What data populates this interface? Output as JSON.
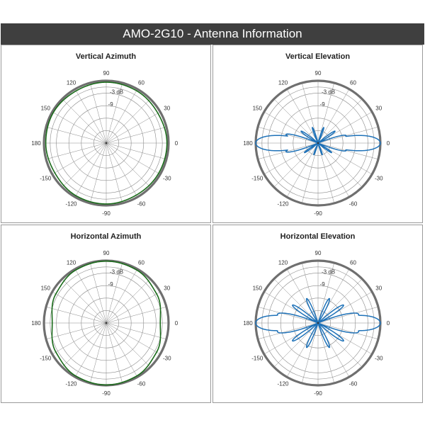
{
  "header": {
    "title": "AMO-2G10 - Antenna Information"
  },
  "colors": {
    "header_bg": "#3f3f3f",
    "azimuth_trace": "#1a6b1a",
    "elevation_trace": "#1f72b8",
    "grid": "#8a8a8a",
    "outer_ring": "#6f6f6f"
  },
  "chart_data": [
    {
      "type": "polar",
      "title": "Vertical Azimuth",
      "angle_labels": [
        "0",
        "30",
        "60",
        "90",
        "120",
        "150",
        "180",
        "-150",
        "-120",
        "-90",
        "-60",
        "-30"
      ],
      "ring_labels": [
        "-3 dB",
        "-9"
      ],
      "series": [
        {
          "color": "#1a6b1a",
          "pattern": "vertical_azimuth",
          "gain_db": [
            -0.8,
            -1.3,
            -0.9,
            -0.7,
            -1.0,
            -0.6,
            -0.9,
            -1.4,
            -0.8,
            -0.7,
            -1.1,
            -0.9,
            -0.8
          ]
        }
      ]
    },
    {
      "type": "polar",
      "title": "Vertical Elevation",
      "angle_labels": [
        "0",
        "30",
        "60",
        "90",
        "120",
        "150",
        "180",
        "-150",
        "-120",
        "-90",
        "-60",
        "-30"
      ],
      "ring_labels": [
        "-3 dB",
        "-9"
      ],
      "series": [
        {
          "color": "#1f72b8",
          "pattern": "vertical_elevation",
          "lobes": [
            {
              "angle": 0,
              "db": 0,
              "width": 7
            },
            {
              "angle": 180,
              "db": 0,
              "width": 7
            },
            {
              "angle": 15,
              "db": -16,
              "width": 4
            },
            {
              "angle": -15,
              "db": -16,
              "width": 4
            },
            {
              "angle": 165,
              "db": -14,
              "width": 4
            },
            {
              "angle": -165,
              "db": -14,
              "width": 4
            },
            {
              "angle": 35,
              "db": -20,
              "width": 4
            },
            {
              "angle": -35,
              "db": -22,
              "width": 4
            },
            {
              "angle": 145,
              "db": -20,
              "width": 4
            },
            {
              "angle": -145,
              "db": -22,
              "width": 4
            },
            {
              "angle": 70,
              "db": -22,
              "width": 4
            },
            {
              "angle": 110,
              "db": -22,
              "width": 4
            },
            {
              "angle": -70,
              "db": -24,
              "width": 4
            },
            {
              "angle": -110,
              "db": -24,
              "width": 4
            }
          ]
        }
      ]
    },
    {
      "type": "polar",
      "title": "Horizontal Azimuth",
      "angle_labels": [
        "0",
        "30",
        "60",
        "90",
        "120",
        "150",
        "180",
        "-150",
        "-120",
        "-90",
        "-60",
        "-30"
      ],
      "ring_labels": [
        "-3 dB",
        "-9"
      ],
      "series": [
        {
          "color": "#1a6b1a",
          "pattern": "horizontal_azimuth",
          "gain_db": [
            -4.0,
            -2.0,
            -0.6,
            -0.2,
            -0.6,
            -2.0,
            -4.0,
            -2.0,
            -0.6,
            -0.2,
            -0.6,
            -2.0,
            -4.0
          ]
        }
      ]
    },
    {
      "type": "polar",
      "title": "Horizontal Elevation",
      "angle_labels": [
        "0",
        "30",
        "60",
        "90",
        "120",
        "150",
        "180",
        "-150",
        "-120",
        "-90",
        "-60",
        "-30"
      ],
      "ring_labels": [
        "-3 dB",
        "-9"
      ],
      "series": [
        {
          "color": "#1f72b8",
          "pattern": "horizontal_elevation",
          "lobes": [
            {
              "angle": 0,
              "db": 0,
              "width": 7
            },
            {
              "angle": 180,
              "db": 0,
              "width": 7
            },
            {
              "angle": 12,
              "db": -10,
              "width": 5
            },
            {
              "angle": -12,
              "db": -10,
              "width": 5
            },
            {
              "angle": 168,
              "db": -10,
              "width": 5
            },
            {
              "angle": -168,
              "db": -10,
              "width": 5
            },
            {
              "angle": 35,
              "db": -15,
              "width": 4
            },
            {
              "angle": -35,
              "db": -15,
              "width": 4
            },
            {
              "angle": 145,
              "db": -15,
              "width": 4
            },
            {
              "angle": -145,
              "db": -15,
              "width": 4
            },
            {
              "angle": 65,
              "db": -17,
              "width": 4
            },
            {
              "angle": 115,
              "db": -17,
              "width": 4
            },
            {
              "angle": -65,
              "db": -17,
              "width": 4
            },
            {
              "angle": -115,
              "db": -17,
              "width": 4
            }
          ]
        }
      ]
    }
  ]
}
